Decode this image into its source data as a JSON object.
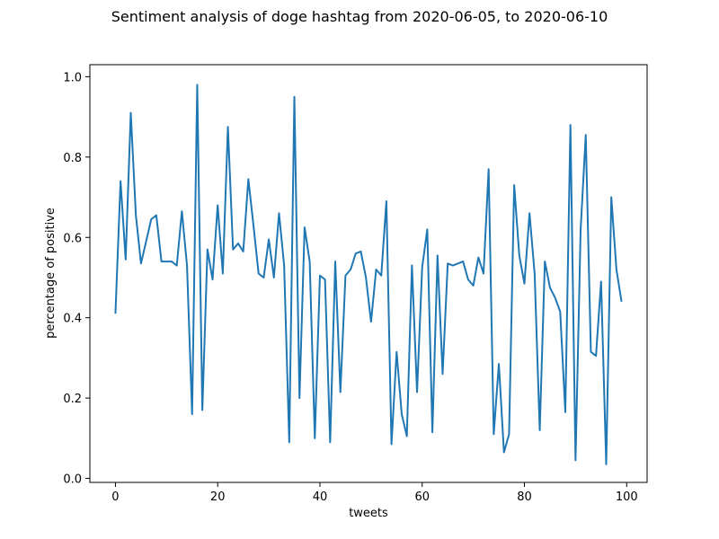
{
  "chart_data": {
    "type": "line",
    "title": "Sentiment analysis of doge hashtag from 2020-06-05, to 2020-06-10",
    "xlabel": "tweets",
    "ylabel": "percentage of positive",
    "xlim": [
      -5,
      104
    ],
    "ylim": [
      -0.01,
      1.03
    ],
    "xticks": [
      0,
      20,
      40,
      60,
      80,
      100
    ],
    "yticks": [
      0.0,
      0.2,
      0.4,
      0.6,
      0.8,
      1.0
    ],
    "grid": false,
    "legend": "none",
    "series": [
      {
        "color": "#1f77b4",
        "x": [
          0,
          1,
          2,
          3,
          4,
          5,
          6,
          7,
          8,
          9,
          10,
          11,
          12,
          13,
          14,
          15,
          16,
          17,
          18,
          19,
          20,
          21,
          22,
          23,
          24,
          25,
          26,
          27,
          28,
          29,
          30,
          31,
          32,
          33,
          34,
          35,
          36,
          37,
          38,
          39,
          40,
          41,
          42,
          43,
          44,
          45,
          46,
          47,
          48,
          49,
          50,
          51,
          52,
          53,
          54,
          55,
          56,
          57,
          58,
          59,
          60,
          61,
          62,
          63,
          64,
          65,
          66,
          67,
          68,
          69,
          70,
          71,
          72,
          73,
          74,
          75,
          76,
          77,
          78,
          79,
          80,
          81,
          82,
          83,
          84,
          85,
          86,
          87,
          88,
          89,
          90,
          91,
          92,
          93,
          94,
          95,
          96,
          97,
          98,
          99
        ],
        "values": [
          0.41,
          0.74,
          0.545,
          0.91,
          0.655,
          0.535,
          0.59,
          0.645,
          0.655,
          0.54,
          0.54,
          0.54,
          0.53,
          0.665,
          0.53,
          0.16,
          0.98,
          0.17,
          0.57,
          0.495,
          0.68,
          0.51,
          0.875,
          0.57,
          0.585,
          0.565,
          0.745,
          0.63,
          0.51,
          0.5,
          0.595,
          0.5,
          0.66,
          0.53,
          0.09,
          0.95,
          0.2,
          0.625,
          0.54,
          0.1,
          0.505,
          0.495,
          0.09,
          0.54,
          0.215,
          0.505,
          0.52,
          0.56,
          0.565,
          0.5,
          0.39,
          0.52,
          0.505,
          0.69,
          0.085,
          0.315,
          0.16,
          0.105,
          0.53,
          0.215,
          0.525,
          0.62,
          0.115,
          0.555,
          0.26,
          0.535,
          0.53,
          0.535,
          0.54,
          0.495,
          0.48,
          0.55,
          0.51,
          0.77,
          0.11,
          0.285,
          0.065,
          0.11,
          0.73,
          0.555,
          0.485,
          0.66,
          0.51,
          0.12,
          0.54,
          0.475,
          0.45,
          0.415,
          0.165,
          0.88,
          0.045,
          0.62,
          0.855,
          0.315,
          0.305,
          0.49,
          0.035,
          0.7,
          0.52,
          0.44
        ]
      }
    ]
  }
}
